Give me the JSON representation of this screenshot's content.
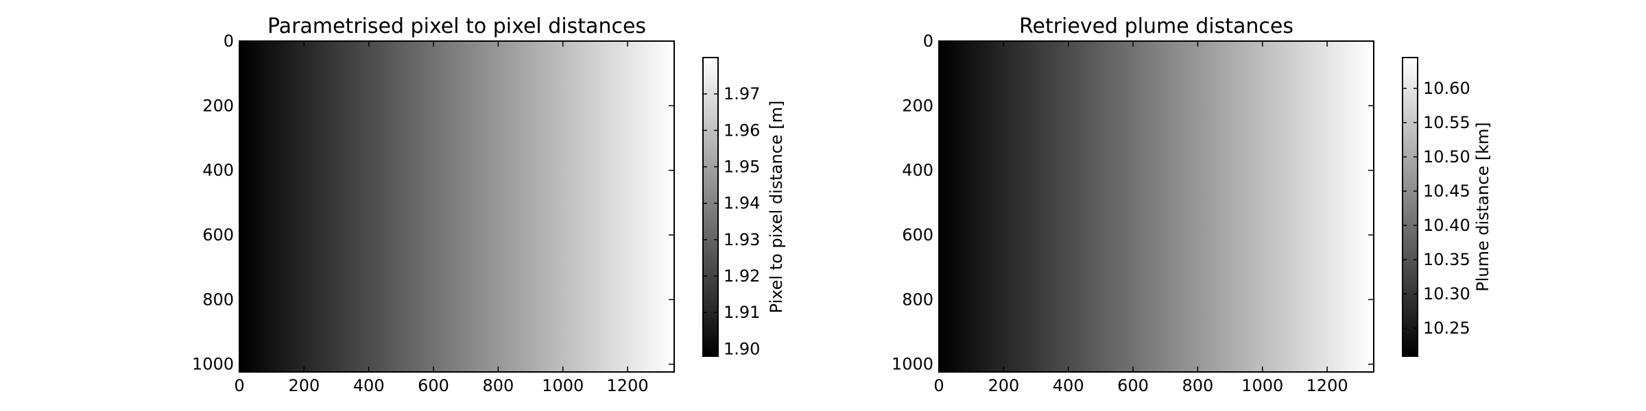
{
  "chart_data": [
    {
      "type": "heatmap",
      "title": "Parametrised pixel to pixel distances",
      "xlabel": "",
      "ylabel": "",
      "xlim": [
        0,
        1344
      ],
      "ylim": [
        1024,
        0
      ],
      "x_ticks": [
        0,
        200,
        400,
        600,
        800,
        1000,
        1200
      ],
      "y_ticks": [
        0,
        200,
        400,
        600,
        800,
        1000
      ],
      "colormap": "gray",
      "gradient_direction": "left-to-right",
      "value_range": [
        1.898,
        1.98
      ],
      "colorbar": {
        "label": "Pixel to pixel distance [m]",
        "range": [
          1.898,
          1.98
        ],
        "ticks": [
          "1.90",
          "1.91",
          "1.92",
          "1.93",
          "1.94",
          "1.95",
          "1.96",
          "1.97"
        ]
      }
    },
    {
      "type": "heatmap",
      "title": "Retrieved plume distances",
      "xlabel": "",
      "ylabel": "",
      "xlim": [
        0,
        1344
      ],
      "ylim": [
        1024,
        0
      ],
      "x_ticks": [
        0,
        200,
        400,
        600,
        800,
        1000,
        1200
      ],
      "y_ticks": [
        0,
        200,
        400,
        600,
        800,
        1000
      ],
      "colormap": "gray",
      "gradient_direction": "left-to-right",
      "value_range": [
        10.209,
        10.645
      ],
      "colorbar": {
        "label": "Plume distance [km]",
        "range": [
          10.209,
          10.645
        ],
        "ticks": [
          "10.25",
          "10.30",
          "10.35",
          "10.40",
          "10.45",
          "10.50",
          "10.55",
          "10.60"
        ]
      }
    }
  ]
}
